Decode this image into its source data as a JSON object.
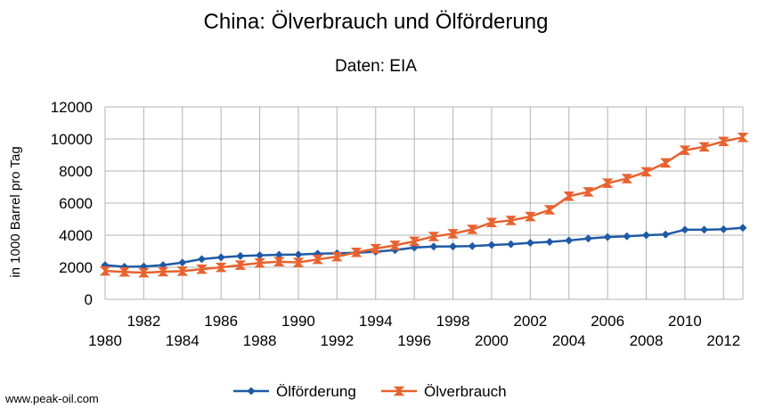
{
  "chart_data": {
    "type": "line",
    "title": "China: Ölverbrauch und Ölförderung",
    "subtitle": "Daten: EIA",
    "xlabel": "",
    "ylabel": "in 1000 Barrel pro Tag",
    "xlim": [
      1980,
      2013
    ],
    "ylim": [
      0,
      12000
    ],
    "yticks": [
      0,
      2000,
      4000,
      6000,
      8000,
      10000,
      12000
    ],
    "xticks_upper": [
      1982,
      1986,
      1990,
      1994,
      1998,
      2002,
      2006,
      2010
    ],
    "xticks_lower": [
      1980,
      1984,
      1988,
      1992,
      1996,
      2000,
      2004,
      2008,
      2012
    ],
    "grid": true,
    "legend": "bottom",
    "x": [
      1980,
      1981,
      1982,
      1983,
      1984,
      1985,
      1986,
      1987,
      1988,
      1989,
      1990,
      1991,
      1992,
      1993,
      1994,
      1995,
      1996,
      1997,
      1998,
      1999,
      2000,
      2001,
      2002,
      2003,
      2004,
      2005,
      2006,
      2007,
      2008,
      2009,
      2010,
      2011,
      2012,
      2013
    ],
    "series": [
      {
        "name": "Ölförderung",
        "color": "#1f5aa6",
        "marker": "diamond",
        "values": [
          2130,
          2030,
          2050,
          2130,
          2290,
          2510,
          2620,
          2700,
          2740,
          2780,
          2790,
          2850,
          2870,
          2900,
          2970,
          3070,
          3230,
          3290,
          3300,
          3320,
          3390,
          3440,
          3520,
          3580,
          3670,
          3790,
          3880,
          3930,
          4000,
          4040,
          4340,
          4340,
          4370,
          4460
        ]
      },
      {
        "name": "Ölverbrauch",
        "color": "#e8622f",
        "marker": "star",
        "values": [
          1770,
          1710,
          1660,
          1720,
          1760,
          1880,
          1990,
          2130,
          2270,
          2350,
          2300,
          2490,
          2660,
          2930,
          3160,
          3370,
          3620,
          3920,
          4090,
          4360,
          4790,
          4920,
          5160,
          5580,
          6430,
          6700,
          7240,
          7530,
          7950,
          8510,
          9300,
          9510,
          9850,
          10100
        ]
      }
    ]
  },
  "footer": "www.peak-oil.com"
}
